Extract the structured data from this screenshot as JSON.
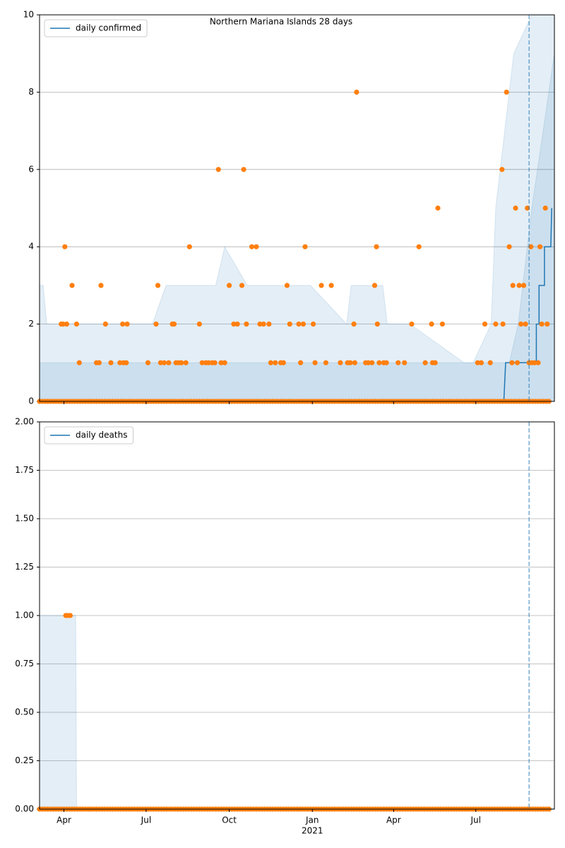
{
  "chart_data": [
    {
      "type": "line",
      "title": "Northern Mariana Islands 28 days",
      "xlim": [
        0,
        570
      ],
      "ylim": [
        0,
        10
      ],
      "yticks": [
        0,
        2,
        4,
        6,
        8,
        10
      ],
      "grid": true,
      "legend": "upper left",
      "vline": 542,
      "series": [
        {
          "name": "daily confirmed",
          "color": "#1f77b4",
          "x": [
            0,
            514,
            516,
            550,
            550,
            553,
            553,
            559,
            559,
            566,
            567
          ],
          "values": [
            0,
            0,
            1,
            1,
            2,
            2,
            3,
            3,
            4,
            4,
            5
          ]
        }
      ],
      "bands": [
        {
          "color": "#1f77b4",
          "x": [
            0,
            4,
            8,
            110,
            125,
            140,
            195,
            205,
            230,
            250,
            280,
            300,
            340,
            345,
            380,
            385,
            410,
            470,
            480,
            500,
            505,
            515,
            525,
            545,
            570
          ],
          "values": [
            3,
            3,
            2,
            2,
            2,
            3,
            3,
            4,
            3,
            3,
            3,
            3,
            2,
            3,
            3,
            2,
            2,
            1,
            1,
            2,
            5,
            7,
            9,
            10,
            10
          ]
        },
        {
          "color": "#1f77b4",
          "x": [
            0,
            120,
            125,
            305,
            320,
            520,
            530,
            545,
            570
          ],
          "values": [
            1,
            1,
            1,
            1,
            1,
            1,
            2,
            5,
            9
          ]
        }
      ],
      "scatter": {
        "color": "#ff7f0e",
        "x": [
          24,
          26,
          28,
          30,
          36,
          41,
          44,
          63,
          66,
          68,
          73,
          79,
          89,
          92,
          93,
          96,
          97,
          120,
          129,
          131,
          134,
          138,
          143,
          147,
          149,
          151,
          154,
          157,
          162,
          166,
          177,
          180,
          184,
          187,
          191,
          194,
          198,
          201,
          205,
          210,
          215,
          219,
          224,
          226,
          229,
          235,
          240,
          244,
          248,
          254,
          256,
          261,
          267,
          270,
          274,
          277,
          287,
          289,
          292,
          294,
          303,
          305,
          312,
          317,
          323,
          333,
          341,
          344,
          348,
          349,
          351,
          361,
          364,
          368,
          371,
          373,
          374,
          376,
          381,
          384,
          397,
          404,
          412,
          420,
          427,
          434,
          435,
          438,
          441,
          446,
          485,
          489,
          493,
          499,
          505,
          512,
          513,
          517,
          520,
          523,
          524,
          527,
          529,
          531,
          533,
          536,
          538,
          540,
          542,
          544,
          545,
          548,
          552,
          554,
          556,
          560,
          562,
          0,
          3,
          6,
          9,
          12,
          15,
          18,
          21,
          24,
          27,
          30,
          33,
          36,
          39,
          42,
          45,
          48,
          51,
          54,
          57,
          60,
          63,
          66,
          69,
          72,
          75,
          78,
          81,
          84,
          87,
          90,
          93,
          96,
          99,
          102,
          105,
          108,
          111,
          114,
          117,
          120,
          123,
          126,
          129,
          132,
          135,
          138,
          141,
          144,
          147,
          150,
          153,
          156,
          159,
          162,
          165,
          168,
          171,
          174,
          177,
          180,
          183,
          186,
          189,
          192,
          195,
          198,
          201,
          204,
          207,
          210,
          213,
          216,
          219,
          222,
          225,
          228,
          231,
          234,
          237,
          240,
          243,
          246,
          249,
          252,
          255,
          258,
          261,
          264,
          267,
          270,
          273,
          276,
          279,
          282,
          285,
          288,
          291,
          294,
          297,
          300,
          303,
          306,
          309,
          312,
          315,
          318,
          321,
          324,
          327,
          330,
          333,
          336,
          339,
          342,
          345,
          348,
          351,
          354,
          357,
          360,
          363,
          366,
          369,
          372,
          375,
          378,
          381,
          384,
          387,
          390,
          393,
          396,
          399,
          402,
          405,
          408,
          411,
          414,
          417,
          420,
          423,
          426,
          429,
          432,
          435,
          438,
          441,
          444,
          447,
          450,
          453,
          456,
          459,
          462,
          465,
          468,
          471,
          474,
          477,
          480,
          483,
          486,
          489,
          492,
          495,
          498,
          501,
          504,
          507,
          510,
          513,
          516,
          519,
          522,
          525,
          528,
          531,
          534,
          537,
          540,
          543,
          546,
          549,
          552,
          555,
          558,
          561,
          564
        ],
        "values": [
          2,
          2,
          4,
          2,
          3,
          2,
          1,
          1,
          1,
          3,
          2,
          1,
          1,
          2,
          1,
          1,
          2,
          1,
          2,
          3,
          1,
          1,
          1,
          2,
          2,
          1,
          1,
          1,
          1,
          4,
          2,
          1,
          1,
          1,
          1,
          1,
          6,
          1,
          1,
          3,
          2,
          2,
          3,
          6,
          2,
          4,
          4,
          2,
          2,
          2,
          1,
          1,
          1,
          1,
          3,
          2,
          2,
          1,
          2,
          4,
          2,
          1,
          3,
          1,
          3,
          1,
          1,
          1,
          2,
          1,
          8,
          1,
          1,
          1,
          3,
          4,
          2,
          1,
          1,
          1,
          1,
          1,
          2,
          4,
          1,
          2,
          1,
          1,
          5,
          2,
          1,
          1,
          2,
          1,
          2,
          6,
          2,
          8,
          4,
          1,
          3,
          5,
          1,
          3,
          2,
          3,
          2,
          5,
          1,
          4,
          1,
          1,
          1,
          4,
          2,
          5,
          2,
          0,
          0,
          0,
          0,
          0,
          0,
          0,
          0,
          0,
          0,
          0,
          0,
          0,
          0,
          0,
          0,
          0,
          0,
          0,
          0,
          0,
          0,
          0,
          0,
          0,
          0,
          0,
          0,
          0,
          0,
          0,
          0,
          0,
          0,
          0,
          0,
          0,
          0,
          0,
          0,
          0,
          0,
          0,
          0,
          0,
          0,
          0,
          0,
          0,
          0,
          0,
          0,
          0,
          0,
          0,
          0,
          0,
          0,
          0,
          0,
          0,
          0,
          0,
          0,
          0,
          0,
          0,
          0,
          0,
          0,
          0,
          0,
          0,
          0,
          0,
          0,
          0,
          0,
          0,
          0,
          0,
          0,
          0,
          0,
          0,
          0,
          0,
          0,
          0,
          0,
          0,
          0,
          0,
          0,
          0,
          0,
          0,
          0,
          0,
          0,
          0,
          0,
          0,
          0,
          0,
          0,
          0,
          0,
          0,
          0,
          0,
          0,
          0,
          0,
          0,
          0,
          0,
          0,
          0,
          0,
          0,
          0,
          0,
          0,
          0,
          0,
          0,
          0,
          0,
          0,
          0,
          0,
          0,
          0,
          0,
          0,
          0,
          0,
          0,
          0,
          0,
          0,
          0,
          0,
          0,
          0,
          0,
          0,
          0,
          0,
          0,
          0,
          0,
          0,
          0,
          0,
          0,
          0,
          0,
          0,
          0,
          0,
          0,
          0,
          0,
          0,
          0,
          0,
          0,
          0,
          0,
          0,
          0,
          0,
          0,
          0,
          0,
          0,
          0,
          0,
          0,
          0,
          0,
          0,
          0,
          0,
          0,
          0,
          0
        ]
      }
    },
    {
      "type": "line",
      "xlim": [
        0,
        570
      ],
      "ylim": [
        0,
        2
      ],
      "yticks": [
        {
          "value": 0,
          "label": "0.00"
        },
        {
          "value": 0.25,
          "label": "0.25"
        },
        {
          "value": 0.5,
          "label": "0.50"
        },
        {
          "value": 0.75,
          "label": "0.75"
        },
        {
          "value": 1,
          "label": "1.00"
        },
        {
          "value": 1.25,
          "label": "1.25"
        },
        {
          "value": 1.5,
          "label": "1.50"
        },
        {
          "value": 1.75,
          "label": "1.75"
        },
        {
          "value": 2,
          "label": "2.00"
        }
      ],
      "xticks": [
        {
          "value": 27,
          "label": "Apr"
        },
        {
          "value": 118,
          "label": "Jul"
        },
        {
          "value": 210,
          "label": "Oct"
        },
        {
          "value": 302,
          "label": "Jan"
        },
        {
          "value": 392,
          "label": "Apr"
        },
        {
          "value": 483,
          "label": "Jul"
        }
      ],
      "year_label": "2021",
      "grid": true,
      "legend": "upper left",
      "vline": 542,
      "series": [
        {
          "name": "daily deaths",
          "color": "#1f77b4",
          "x": [
            0,
            570
          ],
          "values": [
            0,
            0
          ]
        }
      ],
      "bands": [
        {
          "color": "#1f77b4",
          "x": [
            0,
            40,
            41,
            570
          ],
          "values": [
            1,
            1,
            0,
            0
          ]
        }
      ],
      "scatter": {
        "color": "#ff7f0e",
        "x": [
          29,
          31,
          34,
          0,
          3,
          6,
          9,
          12,
          15,
          18,
          21,
          24,
          27,
          30,
          33,
          36,
          39,
          42,
          45,
          48,
          51,
          54,
          57,
          60,
          63,
          66,
          69,
          72,
          75,
          78,
          81,
          84,
          87,
          90,
          93,
          96,
          99,
          102,
          105,
          108,
          111,
          114,
          117,
          120,
          123,
          126,
          129,
          132,
          135,
          138,
          141,
          144,
          147,
          150,
          153,
          156,
          159,
          162,
          165,
          168,
          171,
          174,
          177,
          180,
          183,
          186,
          189,
          192,
          195,
          198,
          201,
          204,
          207,
          210,
          213,
          216,
          219,
          222,
          225,
          228,
          231,
          234,
          237,
          240,
          243,
          246,
          249,
          252,
          255,
          258,
          261,
          264,
          267,
          270,
          273,
          276,
          279,
          282,
          285,
          288,
          291,
          294,
          297,
          300,
          303,
          306,
          309,
          312,
          315,
          318,
          321,
          324,
          327,
          330,
          333,
          336,
          339,
          342,
          345,
          348,
          351,
          354,
          357,
          360,
          363,
          366,
          369,
          372,
          375,
          378,
          381,
          384,
          387,
          390,
          393,
          396,
          399,
          402,
          405,
          408,
          411,
          414,
          417,
          420,
          423,
          426,
          429,
          432,
          435,
          438,
          441,
          444,
          447,
          450,
          453,
          456,
          459,
          462,
          465,
          468,
          471,
          474,
          477,
          480,
          483,
          486,
          489,
          492,
          495,
          498,
          501,
          504,
          507,
          510,
          513,
          516,
          519,
          522,
          525,
          528,
          531,
          534,
          537,
          540,
          543,
          546,
          549,
          552,
          555,
          558,
          561,
          564
        ],
        "values": [
          1,
          1,
          1,
          0,
          0,
          0,
          0,
          0,
          0,
          0,
          0,
          0,
          0,
          0,
          0,
          0,
          0,
          0,
          0,
          0,
          0,
          0,
          0,
          0,
          0,
          0,
          0,
          0,
          0,
          0,
          0,
          0,
          0,
          0,
          0,
          0,
          0,
          0,
          0,
          0,
          0,
          0,
          0,
          0,
          0,
          0,
          0,
          0,
          0,
          0,
          0,
          0,
          0,
          0,
          0,
          0,
          0,
          0,
          0,
          0,
          0,
          0,
          0,
          0,
          0,
          0,
          0,
          0,
          0,
          0,
          0,
          0,
          0,
          0,
          0,
          0,
          0,
          0,
          0,
          0,
          0,
          0,
          0,
          0,
          0,
          0,
          0,
          0,
          0,
          0,
          0,
          0,
          0,
          0,
          0,
          0,
          0,
          0,
          0,
          0,
          0,
          0,
          0,
          0,
          0,
          0,
          0,
          0,
          0,
          0,
          0,
          0,
          0,
          0,
          0,
          0,
          0,
          0,
          0,
          0,
          0,
          0,
          0,
          0,
          0,
          0,
          0,
          0,
          0,
          0,
          0,
          0,
          0,
          0,
          0,
          0,
          0,
          0,
          0,
          0,
          0,
          0,
          0,
          0,
          0,
          0,
          0,
          0,
          0,
          0,
          0,
          0,
          0,
          0,
          0,
          0,
          0,
          0,
          0,
          0,
          0,
          0,
          0,
          0,
          0,
          0,
          0,
          0,
          0,
          0,
          0,
          0,
          0,
          0,
          0,
          0,
          0,
          0,
          0,
          0,
          0,
          0,
          0,
          0,
          0,
          0,
          0,
          0,
          0,
          0,
          0,
          0
        ]
      }
    }
  ]
}
